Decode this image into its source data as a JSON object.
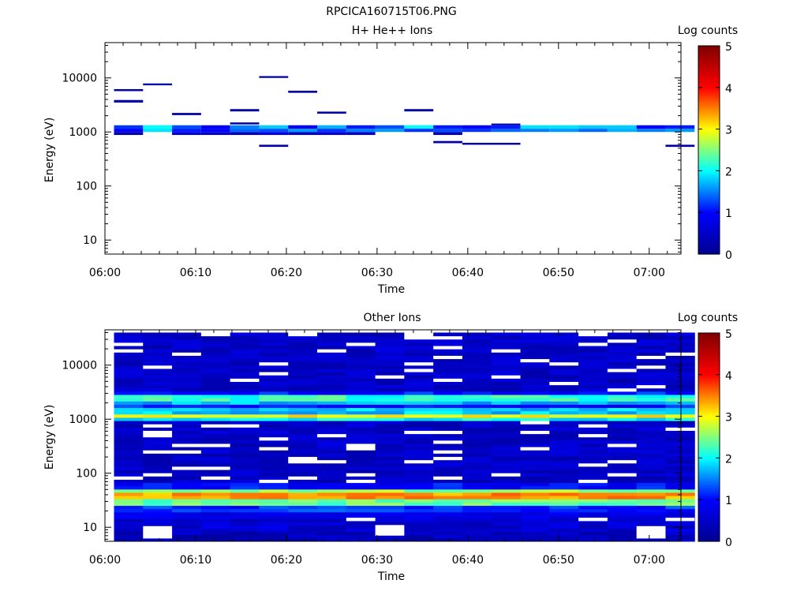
{
  "page": {
    "filename": "RPCICA160715T06.PNG"
  },
  "colors": {
    "axis": "#000000",
    "background": "#ffffff",
    "colormap": [
      "#00008f",
      "#0000ff",
      "#00ffff",
      "#ffff00",
      "#ff0000",
      "#800000"
    ]
  },
  "chart_data": [
    {
      "type": "heatmap",
      "title": "H+ He++ Ions",
      "xlabel": "Time",
      "ylabel": "Energy (eV)",
      "y_scale": "log",
      "ylim": [
        5.5,
        45000
      ],
      "xlim": [
        "06:00",
        "07:03.5"
      ],
      "x_ticks": [
        "06:00",
        "06:10",
        "06:20",
        "06:30",
        "06:40",
        "06:50",
        "07:00"
      ],
      "y_ticks": [
        "10",
        "100",
        "1000",
        "10000"
      ],
      "colorbar": {
        "label": "Log counts",
        "range": [
          0,
          5
        ],
        "ticks": [
          "0",
          "1",
          "2",
          "3",
          "4",
          "5"
        ]
      },
      "time_bins": [
        "06:01",
        "06:04.2",
        "06:07.4",
        "06:10.6",
        "06:13.8",
        "06:17",
        "06:20.2",
        "06:23.4",
        "06:26.6",
        "06:29.8",
        "06:33",
        "06:36.2",
        "06:39.4",
        "06:42.6",
        "06:45.8",
        "06:49",
        "06:52.2",
        "06:55.4",
        "06:58.6",
        "07:01.8"
      ],
      "cells": [
        {
          "t0": 0,
          "t1": 1,
          "e0": 880,
          "e1": 1000,
          "v": 0.3
        },
        {
          "t0": 0,
          "t1": 1,
          "e0": 1000,
          "e1": 1150,
          "v": 1.0
        },
        {
          "t0": 0,
          "t1": 1,
          "e0": 1150,
          "e1": 1330,
          "v": 1.2
        },
        {
          "t0": 1,
          "t1": 2,
          "e0": 1000,
          "e1": 1150,
          "v": 1.9
        },
        {
          "t0": 1,
          "t1": 2,
          "e0": 1150,
          "e1": 1330,
          "v": 2.0
        },
        {
          "t0": 2,
          "t1": 3,
          "e0": 880,
          "e1": 1000,
          "v": 0.6
        },
        {
          "t0": 2,
          "t1": 3,
          "e0": 1000,
          "e1": 1150,
          "v": 1.1
        },
        {
          "t0": 2,
          "t1": 3,
          "e0": 1150,
          "e1": 1330,
          "v": 1.3
        },
        {
          "t0": 3,
          "t1": 4,
          "e0": 880,
          "e1": 1000,
          "v": 0.5
        },
        {
          "t0": 3,
          "t1": 4,
          "e0": 1000,
          "e1": 1150,
          "v": 1.0
        },
        {
          "t0": 3,
          "t1": 4,
          "e0": 1150,
          "e1": 1330,
          "v": 0.9
        },
        {
          "t0": 4,
          "t1": 5,
          "e0": 880,
          "e1": 1000,
          "v": 0.4
        },
        {
          "t0": 4,
          "t1": 5,
          "e0": 1000,
          "e1": 1150,
          "v": 1.4
        },
        {
          "t0": 4,
          "t1": 5,
          "e0": 1150,
          "e1": 1330,
          "v": 1.5
        },
        {
          "t0": 5,
          "t1": 6,
          "e0": 880,
          "e1": 1000,
          "v": 0.7
        },
        {
          "t0": 5,
          "t1": 6,
          "e0": 1000,
          "e1": 1150,
          "v": 1.3
        },
        {
          "t0": 5,
          "t1": 6,
          "e0": 1150,
          "e1": 1330,
          "v": 1.8
        },
        {
          "t0": 6,
          "t1": 7,
          "e0": 880,
          "e1": 1000,
          "v": 0.5
        },
        {
          "t0": 6,
          "t1": 7,
          "e0": 1000,
          "e1": 1150,
          "v": 1.6
        },
        {
          "t0": 6,
          "t1": 7,
          "e0": 1150,
          "e1": 1330,
          "v": 0.9
        },
        {
          "t0": 7,
          "t1": 8,
          "e0": 880,
          "e1": 1000,
          "v": 0.6
        },
        {
          "t0": 7,
          "t1": 8,
          "e0": 1000,
          "e1": 1150,
          "v": 1.2
        },
        {
          "t0": 7,
          "t1": 8,
          "e0": 1150,
          "e1": 1330,
          "v": 1.7
        },
        {
          "t0": 8,
          "t1": 9,
          "e0": 880,
          "e1": 1000,
          "v": 0.5
        },
        {
          "t0": 8,
          "t1": 9,
          "e0": 1000,
          "e1": 1150,
          "v": 1.5
        },
        {
          "t0": 8,
          "t1": 9,
          "e0": 1150,
          "e1": 1330,
          "v": 1.1
        },
        {
          "t0": 9,
          "t1": 10,
          "e0": 1000,
          "e1": 1150,
          "v": 1.6
        },
        {
          "t0": 9,
          "t1": 10,
          "e0": 1150,
          "e1": 1330,
          "v": 1.3
        },
        {
          "t0": 10,
          "t1": 11,
          "e0": 1000,
          "e1": 1150,
          "v": 1.2
        },
        {
          "t0": 10,
          "t1": 11,
          "e0": 1150,
          "e1": 1330,
          "v": 2.0
        },
        {
          "t0": 11,
          "t1": 12,
          "e0": 880,
          "e1": 1000,
          "v": 0.4
        },
        {
          "t0": 11,
          "t1": 12,
          "e0": 1000,
          "e1": 1150,
          "v": 1.3
        },
        {
          "t0": 11,
          "t1": 12,
          "e0": 1150,
          "e1": 1330,
          "v": 1.1
        },
        {
          "t0": 12,
          "t1": 13,
          "e0": 1000,
          "e1": 1150,
          "v": 1.2
        },
        {
          "t0": 12,
          "t1": 13,
          "e0": 1150,
          "e1": 1330,
          "v": 1.0
        },
        {
          "t0": 13,
          "t1": 14,
          "e0": 1000,
          "e1": 1150,
          "v": 1.4
        },
        {
          "t0": 13,
          "t1": 14,
          "e0": 1150,
          "e1": 1330,
          "v": 1.1
        },
        {
          "t0": 14,
          "t1": 15,
          "e0": 1000,
          "e1": 1150,
          "v": 1.5
        },
        {
          "t0": 14,
          "t1": 15,
          "e0": 1150,
          "e1": 1330,
          "v": 1.9
        },
        {
          "t0": 15,
          "t1": 16,
          "e0": 1000,
          "e1": 1150,
          "v": 1.6
        },
        {
          "t0": 15,
          "t1": 16,
          "e0": 1150,
          "e1": 1330,
          "v": 1.9
        },
        {
          "t0": 16,
          "t1": 17,
          "e0": 1000,
          "e1": 1150,
          "v": 1.4
        },
        {
          "t0": 16,
          "t1": 17,
          "e0": 1150,
          "e1": 1330,
          "v": 1.8
        },
        {
          "t0": 17,
          "t1": 18,
          "e0": 1000,
          "e1": 1150,
          "v": 1.7
        },
        {
          "t0": 17,
          "t1": 18,
          "e0": 1150,
          "e1": 1330,
          "v": 1.8
        },
        {
          "t0": 18,
          "t1": 19,
          "e0": 1000,
          "e1": 1150,
          "v": 1.5
        },
        {
          "t0": 18,
          "t1": 19,
          "e0": 1150,
          "e1": 1330,
          "v": 1.0
        },
        {
          "t0": 19,
          "t1": 20,
          "e0": 1000,
          "e1": 1150,
          "v": 1.6
        },
        {
          "t0": 19,
          "t1": 20,
          "e0": 1150,
          "e1": 1330,
          "v": 1.1
        },
        {
          "t0": 0,
          "t1": 1,
          "e0": 5700,
          "e1": 6200,
          "v": 0.2
        },
        {
          "t0": 0,
          "t1": 1,
          "e0": 3500,
          "e1": 3900,
          "v": 0.2
        },
        {
          "t0": 1,
          "t1": 2,
          "e0": 7300,
          "e1": 7900,
          "v": 0.2
        },
        {
          "t0": 2,
          "t1": 3,
          "e0": 2050,
          "e1": 2250,
          "v": 0.2
        },
        {
          "t0": 4,
          "t1": 5,
          "e0": 2400,
          "e1": 2650,
          "v": 0.2
        },
        {
          "t0": 4,
          "t1": 5,
          "e0": 1380,
          "e1": 1500,
          "v": 0.2
        },
        {
          "t0": 5,
          "t1": 6,
          "e0": 10000,
          "e1": 10800,
          "v": 0.2
        },
        {
          "t0": 5,
          "t1": 6,
          "e0": 530,
          "e1": 580,
          "v": 0.2
        },
        {
          "t0": 6,
          "t1": 7,
          "e0": 5300,
          "e1": 5800,
          "v": 0.2
        },
        {
          "t0": 7,
          "t1": 8,
          "e0": 2180,
          "e1": 2380,
          "v": 0.2
        },
        {
          "t0": 10,
          "t1": 11,
          "e0": 2400,
          "e1": 2650,
          "v": 0.2
        },
        {
          "t0": 11,
          "t1": 12,
          "e0": 620,
          "e1": 680,
          "v": 0.2
        },
        {
          "t0": 12,
          "t1": 14,
          "e0": 580,
          "e1": 630,
          "v": 0.2
        },
        {
          "t0": 13,
          "t1": 14,
          "e0": 1330,
          "e1": 1430,
          "v": 0.2
        },
        {
          "t0": 19,
          "t1": 20,
          "e0": 530,
          "e1": 580,
          "v": 0.2
        }
      ]
    },
    {
      "type": "heatmap",
      "title": "Other Ions",
      "xlabel": "Time",
      "ylabel": "Energy (eV)",
      "y_scale": "log",
      "ylim": [
        5.5,
        45000
      ],
      "xlim": [
        "06:00",
        "07:03.5"
      ],
      "x_ticks": [
        "06:00",
        "06:10",
        "06:20",
        "06:30",
        "06:40",
        "06:50",
        "07:00"
      ],
      "y_ticks": [
        "10",
        "100",
        "1000",
        "10000"
      ],
      "colorbar": {
        "label": "Log counts",
        "range": [
          0,
          5
        ],
        "ticks": [
          "0",
          "1",
          "2",
          "3",
          "4",
          "5"
        ]
      },
      "energy_profile": [
        {
          "e0": 5.5,
          "e1": 8,
          "v": 0.4
        },
        {
          "e0": 8,
          "e1": 15,
          "v": 0.6
        },
        {
          "e0": 15,
          "e1": 20,
          "v": 0.8
        },
        {
          "e0": 20,
          "e1": 26,
          "v": 1.2
        },
        {
          "e0": 26,
          "e1": 32,
          "v": 2.4
        },
        {
          "e0": 32,
          "e1": 42,
          "v": 3.4
        },
        {
          "e0": 42,
          "e1": 52,
          "v": 2.6
        },
        {
          "e0": 52,
          "e1": 65,
          "v": 1.0
        },
        {
          "e0": 65,
          "e1": 900,
          "v": 0.5
        },
        {
          "e0": 900,
          "e1": 1050,
          "v": 2.0
        },
        {
          "e0": 1050,
          "e1": 1300,
          "v": 3.1
        },
        {
          "e0": 1300,
          "e1": 1550,
          "v": 1.8
        },
        {
          "e0": 1550,
          "e1": 2000,
          "v": 1.1
        },
        {
          "e0": 2000,
          "e1": 2300,
          "v": 1.7
        },
        {
          "e0": 2300,
          "e1": 2800,
          "v": 2.2
        },
        {
          "e0": 2800,
          "e1": 3300,
          "v": 1.1
        },
        {
          "e0": 3300,
          "e1": 40000,
          "v": 0.5
        }
      ],
      "empty_cells": [
        {
          "t": 1,
          "e0": 6.2,
          "e1": 10.5
        },
        {
          "t": 8,
          "e0": 13,
          "e1": 15
        },
        {
          "t": 9,
          "e0": 7,
          "e1": 11
        },
        {
          "t": 16,
          "e0": 13,
          "e1": 15
        },
        {
          "t": 18,
          "e0": 6.2,
          "e1": 10.5
        },
        {
          "t": 19,
          "e0": 13,
          "e1": 15
        }
      ]
    }
  ]
}
